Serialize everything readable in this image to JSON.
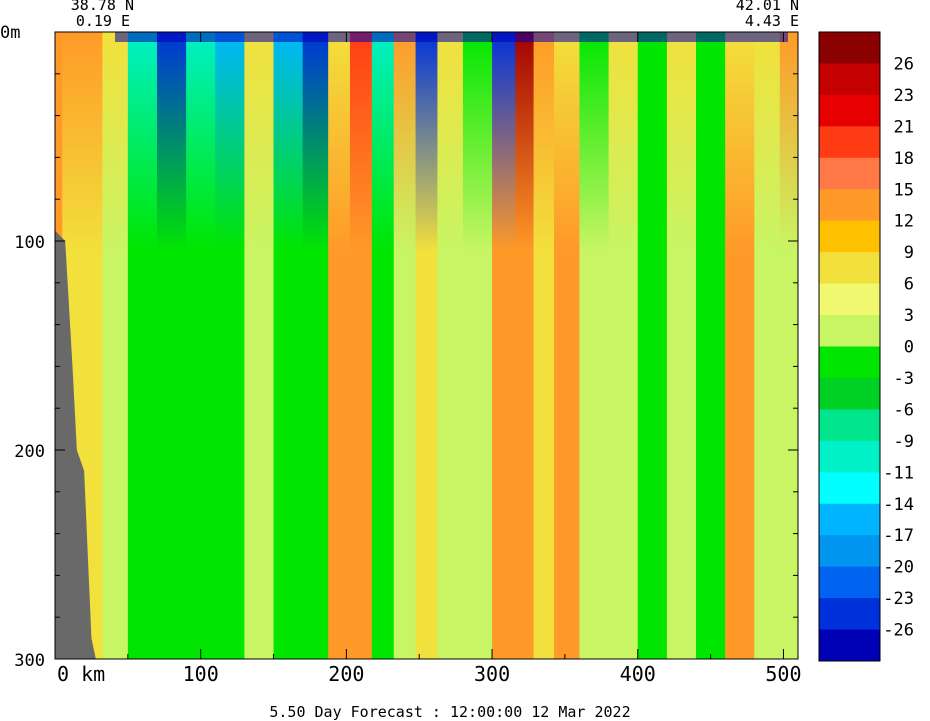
{
  "chart_data": {
    "type": "heatmap",
    "title": "",
    "caption": "5.50 Day Forecast : 12:00:00  12 Mar 2022",
    "start_point": {
      "lat": "38.78 N",
      "lon": "0.19 E"
    },
    "end_point": {
      "lat": "42.01 N",
      "lon": "4.43 E"
    },
    "x_axis": {
      "unit": "km",
      "range": [
        0,
        510
      ],
      "ticks": [
        0,
        100,
        200,
        300,
        400,
        500
      ],
      "first_label": "0 km"
    },
    "y_axis": {
      "unit": "m",
      "range": [
        0,
        300
      ],
      "inverted": true,
      "ticks": [
        0,
        100,
        200,
        300
      ],
      "first_label": "0m"
    },
    "colorbar": {
      "labels": [
        "26",
        "23",
        "21",
        "18",
        "15",
        "12",
        "9",
        "6",
        "3",
        "0",
        "-3",
        "-6",
        "-9",
        "-11",
        "-14",
        "-17",
        "-20",
        "-23",
        "-26"
      ],
      "colors": [
        "#8b0000",
        "#c40000",
        "#e60000",
        "#ff3c14",
        "#ff7846",
        "#ff9a28",
        "#ffc000",
        "#f2e03c",
        "#f0f870",
        "#c8f564",
        "#00e600",
        "#00d024",
        "#00e48c",
        "#00f0c8",
        "#00ffff",
        "#00b4ff",
        "#0096f0",
        "#0064f0",
        "#0032dc",
        "#0000b4"
      ]
    },
    "columns": [
      {
        "x": 0,
        "top": "orange",
        "deep": "orange"
      },
      {
        "x": 10,
        "top": "orange",
        "deep": "yellow"
      },
      {
        "x": 25,
        "top": "orange",
        "deep": "yellow"
      },
      {
        "x": 40,
        "top": "yellow",
        "deep": "lightgreen"
      },
      {
        "x": 60,
        "top": "cyan",
        "deep": "green"
      },
      {
        "x": 80,
        "top": "blue",
        "deep": "green"
      },
      {
        "x": 100,
        "top": "cyan",
        "deep": "green"
      },
      {
        "x": 120,
        "top": "lightblue",
        "deep": "green"
      },
      {
        "x": 140,
        "top": "yellow",
        "deep": "lightgreen"
      },
      {
        "x": 160,
        "top": "lightblue",
        "deep": "green"
      },
      {
        "x": 180,
        "top": "blue",
        "deep": "green"
      },
      {
        "x": 195,
        "top": "yellow",
        "deep": "orange"
      },
      {
        "x": 210,
        "top": "red",
        "deep": "orange"
      },
      {
        "x": 225,
        "top": "cyan",
        "deep": "green"
      },
      {
        "x": 240,
        "top": "orange",
        "deep": "lightgreen"
      },
      {
        "x": 255,
        "top": "blue",
        "deep": "yellow"
      },
      {
        "x": 270,
        "top": "yellow",
        "deep": "lightgreen"
      },
      {
        "x": 290,
        "top": "green",
        "deep": "lightgreen"
      },
      {
        "x": 310,
        "top": "blue",
        "deep": "orange"
      },
      {
        "x": 322,
        "top": "darkred",
        "deep": "orange"
      },
      {
        "x": 335,
        "top": "orange",
        "deep": "yellow"
      },
      {
        "x": 350,
        "top": "yellow",
        "deep": "orange"
      },
      {
        "x": 370,
        "top": "green",
        "deep": "lightgreen"
      },
      {
        "x": 390,
        "top": "yellow",
        "deep": "lightgreen"
      },
      {
        "x": 410,
        "top": "green",
        "deep": "green"
      },
      {
        "x": 430,
        "top": "yellow",
        "deep": "lightgreen"
      },
      {
        "x": 450,
        "top": "green",
        "deep": "green"
      },
      {
        "x": 470,
        "top": "yellow",
        "deep": "orange"
      },
      {
        "x": 490,
        "top": "yellow",
        "deep": "lightgreen"
      },
      {
        "x": 505,
        "top": "orange",
        "deep": "lightgreen"
      }
    ],
    "seabed": [
      [
        0,
        95
      ],
      [
        7,
        100
      ],
      [
        12,
        160
      ],
      [
        15,
        200
      ],
      [
        20,
        210
      ],
      [
        25,
        290
      ],
      [
        28,
        300
      ]
    ]
  }
}
